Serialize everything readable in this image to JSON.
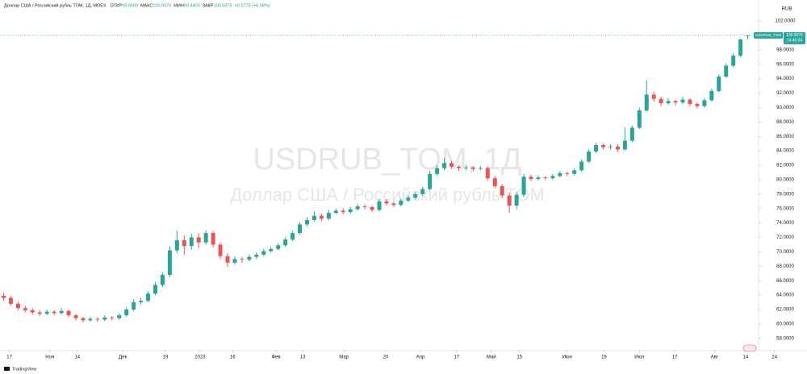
{
  "chart_data": {
    "type": "candlestick",
    "legend_title": "Доллар США / Российский рубль TOM, 1Д, MOEX",
    "ohlc_legend": [
      {
        "label": "ОТКР",
        "value": "99.9000"
      },
      {
        "label": "МАКС",
        "value": "100.0075"
      },
      {
        "label": "МИН",
        "value": "99.4400"
      },
      {
        "label": "ЗАКР",
        "value": "100.0075"
      }
    ],
    "change": "+0.5775 (+0.58%)",
    "watermark": "USDRUB_TOM, 1Д",
    "watermark_subtitle": "Доллар США / Российский рубль TOM",
    "currency": "RUB",
    "symbol": "USDRUB_TOM",
    "countdown": "14:45:04",
    "logo": "TradingView",
    "up_color": "#26a69a",
    "down_color": "#ef5350",
    "grid": false,
    "ylim": [
      56.3,
      104.35
    ],
    "yticks": [
      {
        "value": 58,
        "label": "58.0000"
      },
      {
        "value": 60,
        "label": "60.0000"
      },
      {
        "value": 62,
        "label": "62.0000"
      },
      {
        "value": 64,
        "label": "64.0000"
      },
      {
        "value": 66,
        "label": "66.0000"
      },
      {
        "value": 68,
        "label": "68.0000"
      },
      {
        "value": 70,
        "label": "70.0000"
      },
      {
        "value": 72,
        "label": "72.0000"
      },
      {
        "value": 74,
        "label": "74.0000"
      },
      {
        "value": 76,
        "label": "76.0000"
      },
      {
        "value": 78,
        "label": "78.0000"
      },
      {
        "value": 80,
        "label": "80.0000"
      },
      {
        "value": 82,
        "label": "82.0000"
      },
      {
        "value": 84,
        "label": "84.0000"
      },
      {
        "value": 86,
        "label": "86.0000"
      },
      {
        "value": 88,
        "label": "88.0000"
      },
      {
        "value": 90,
        "label": "90.0000"
      },
      {
        "value": 92,
        "label": "92.0000"
      },
      {
        "value": 94,
        "label": "94.0000"
      },
      {
        "value": 96,
        "label": "96.0000"
      },
      {
        "value": 98,
        "label": "98.0000"
      },
      {
        "value": 100,
        "label": "100.0000"
      },
      {
        "value": 102,
        "label": "102.0000"
      }
    ],
    "xlim": [
      -0.5,
      111.2
    ],
    "xticks": [
      {
        "value": 0.8,
        "label": "17"
      },
      {
        "value": 6.4,
        "label": "Ноя"
      },
      {
        "value": 10.2,
        "label": "14"
      },
      {
        "value": 16.5,
        "label": "Дек"
      },
      {
        "value": 22.4,
        "label": "19"
      },
      {
        "value": 27.2,
        "label": "2023"
      },
      {
        "value": 31.7,
        "label": "16"
      },
      {
        "value": 37.7,
        "label": "Фев"
      },
      {
        "value": 41.4,
        "label": "13"
      },
      {
        "value": 47.1,
        "label": "Мар"
      },
      {
        "value": 52.9,
        "label": "20"
      },
      {
        "value": 57.7,
        "label": "Апр"
      },
      {
        "value": 62.7,
        "label": "17"
      },
      {
        "value": 67.5,
        "label": "Май"
      },
      {
        "value": 71.4,
        "label": "15"
      },
      {
        "value": 78.0,
        "label": "Июн"
      },
      {
        "value": 83.1,
        "label": "19"
      },
      {
        "value": 88.0,
        "label": "Июл"
      },
      {
        "value": 92.9,
        "label": "17"
      },
      {
        "value": 98.4,
        "label": "Авг"
      },
      {
        "value": 102.7,
        "label": "14"
      },
      {
        "value": 106.7,
        "label": "24"
      }
    ],
    "candles": [
      [
        63.9,
        64.3,
        63.2,
        63.6
      ],
      [
        63.6,
        63.9,
        62.5,
        62.8
      ],
      [
        62.8,
        63.1,
        61.9,
        62.2
      ],
      [
        62.2,
        62.5,
        61.6,
        61.9
      ],
      [
        61.9,
        62.2,
        61.3,
        61.6
      ],
      [
        61.6,
        61.9,
        61.1,
        61.4
      ],
      [
        61.4,
        62.0,
        61.2,
        61.7
      ],
      [
        61.7,
        61.9,
        61.2,
        61.5
      ],
      [
        61.5,
        62.2,
        61.3,
        61.8
      ],
      [
        61.8,
        62.0,
        60.9,
        61.2
      ],
      [
        61.2,
        61.4,
        60.5,
        60.8
      ],
      [
        60.8,
        61.0,
        60.2,
        60.5
      ],
      [
        60.5,
        61.0,
        60.3,
        60.7
      ],
      [
        60.7,
        60.9,
        60.3,
        60.6
      ],
      [
        60.6,
        61.2,
        60.4,
        60.9
      ],
      [
        60.9,
        61.1,
        60.5,
        60.8
      ],
      [
        60.8,
        61.5,
        60.6,
        61.2
      ],
      [
        61.2,
        62.3,
        61.0,
        62.0
      ],
      [
        62.0,
        63.4,
        61.8,
        63.0
      ],
      [
        63.0,
        63.6,
        62.7,
        63.2
      ],
      [
        63.2,
        64.5,
        63.0,
        64.2
      ],
      [
        64.2,
        65.8,
        64.0,
        65.4
      ],
      [
        65.4,
        67.2,
        65.1,
        66.8
      ],
      [
        66.8,
        70.8,
        66.5,
        70.2
      ],
      [
        70.2,
        72.9,
        69.8,
        71.6
      ],
      [
        71.6,
        72.3,
        69.6,
        70.8
      ],
      [
        70.8,
        72.5,
        70.3,
        72.0
      ],
      [
        72.0,
        72.6,
        70.5,
        71.3
      ],
      [
        71.3,
        73.0,
        71.0,
        72.6
      ],
      [
        72.6,
        72.9,
        70.6,
        71.0
      ],
      [
        71.0,
        71.3,
        69.0,
        69.4
      ],
      [
        69.4,
        69.8,
        67.9,
        68.5
      ],
      [
        68.5,
        69.4,
        68.2,
        69.0
      ],
      [
        69.0,
        69.3,
        68.5,
        68.9
      ],
      [
        68.9,
        69.6,
        68.7,
        69.3
      ],
      [
        69.3,
        69.9,
        69.0,
        69.6
      ],
      [
        69.6,
        70.4,
        69.4,
        70.1
      ],
      [
        70.1,
        70.7,
        69.9,
        70.4
      ],
      [
        70.4,
        71.2,
        70.2,
        70.9
      ],
      [
        70.9,
        72.0,
        70.7,
        71.7
      ],
      [
        71.7,
        72.9,
        71.5,
        72.6
      ],
      [
        72.6,
        74.1,
        72.4,
        73.8
      ],
      [
        73.8,
        74.8,
        73.5,
        74.4
      ],
      [
        74.4,
        75.6,
        74.2,
        75.0
      ],
      [
        75.0,
        75.3,
        74.3,
        74.6
      ],
      [
        74.6,
        75.8,
        74.4,
        75.4
      ],
      [
        75.4,
        76.0,
        75.2,
        75.7
      ],
      [
        75.7,
        76.0,
        75.2,
        75.5
      ],
      [
        75.5,
        76.2,
        75.3,
        75.9
      ],
      [
        75.9,
        76.6,
        75.7,
        76.3
      ],
      [
        76.3,
        76.6,
        75.9,
        76.2
      ],
      [
        76.2,
        76.4,
        75.5,
        75.8
      ],
      [
        75.8,
        77.3,
        75.6,
        77.0
      ],
      [
        77.0,
        77.3,
        76.4,
        76.7
      ],
      [
        76.7,
        77.0,
        76.2,
        76.5
      ],
      [
        76.5,
        77.4,
        76.3,
        77.1
      ],
      [
        77.1,
        77.8,
        76.9,
        77.5
      ],
      [
        77.5,
        78.3,
        77.3,
        78.0
      ],
      [
        78.0,
        79.0,
        77.8,
        78.7
      ],
      [
        78.7,
        81.2,
        78.5,
        80.8
      ],
      [
        80.8,
        82.0,
        80.5,
        81.6
      ],
      [
        81.6,
        83.0,
        81.3,
        82.3
      ],
      [
        82.3,
        82.6,
        81.5,
        81.8
      ],
      [
        81.8,
        82.0,
        81.2,
        81.6
      ],
      [
        81.6,
        82.0,
        81.3,
        81.7
      ],
      [
        81.7,
        81.9,
        81.2,
        81.5
      ],
      [
        81.5,
        81.9,
        81.3,
        81.6
      ],
      [
        81.6,
        81.8,
        79.9,
        80.2
      ],
      [
        80.2,
        80.5,
        78.8,
        79.1
      ],
      [
        79.1,
        79.4,
        77.4,
        77.8
      ],
      [
        77.8,
        78.2,
        75.4,
        76.4
      ],
      [
        76.4,
        78.3,
        75.9,
        77.9
      ],
      [
        77.9,
        80.8,
        77.6,
        80.4
      ],
      [
        80.4,
        80.7,
        79.8,
        80.1
      ],
      [
        80.1,
        80.6,
        79.9,
        80.3
      ],
      [
        80.3,
        80.5,
        79.9,
        80.2
      ],
      [
        80.2,
        80.8,
        80.0,
        80.5
      ],
      [
        80.5,
        81.2,
        80.3,
        80.9
      ],
      [
        80.9,
        81.1,
        80.5,
        80.8
      ],
      [
        80.8,
        81.6,
        80.6,
        81.3
      ],
      [
        81.3,
        82.8,
        81.1,
        82.5
      ],
      [
        82.5,
        84.2,
        82.3,
        83.9
      ],
      [
        83.9,
        85.1,
        83.7,
        84.8
      ],
      [
        84.8,
        85.0,
        84.2,
        84.5
      ],
      [
        84.5,
        84.9,
        84.2,
        84.6
      ],
      [
        84.6,
        84.9,
        83.8,
        84.2
      ],
      [
        84.2,
        87.2,
        84.0,
        85.4
      ],
      [
        85.4,
        87.5,
        85.2,
        87.2
      ],
      [
        87.2,
        90.0,
        87.0,
        89.6
      ],
      [
        89.6,
        93.8,
        89.4,
        91.8
      ],
      [
        91.8,
        92.2,
        90.8,
        91.2
      ],
      [
        91.2,
        91.5,
        90.2,
        90.6
      ],
      [
        90.6,
        91.3,
        90.4,
        90.9
      ],
      [
        90.9,
        91.1,
        90.3,
        90.7
      ],
      [
        90.7,
        91.5,
        90.5,
        91.1
      ],
      [
        91.1,
        91.3,
        90.2,
        90.5
      ],
      [
        90.5,
        90.7,
        89.9,
        90.2
      ],
      [
        90.2,
        91.3,
        90.0,
        91.0
      ],
      [
        91.0,
        92.6,
        90.8,
        92.3
      ],
      [
        92.3,
        94.6,
        92.1,
        94.3
      ],
      [
        94.3,
        96.1,
        94.1,
        95.8
      ],
      [
        95.8,
        97.5,
        95.6,
        97.2
      ],
      [
        97.2,
        99.6,
        97.0,
        99.43
      ],
      [
        99.9,
        100.0075,
        99.44,
        100.0075
      ]
    ]
  }
}
